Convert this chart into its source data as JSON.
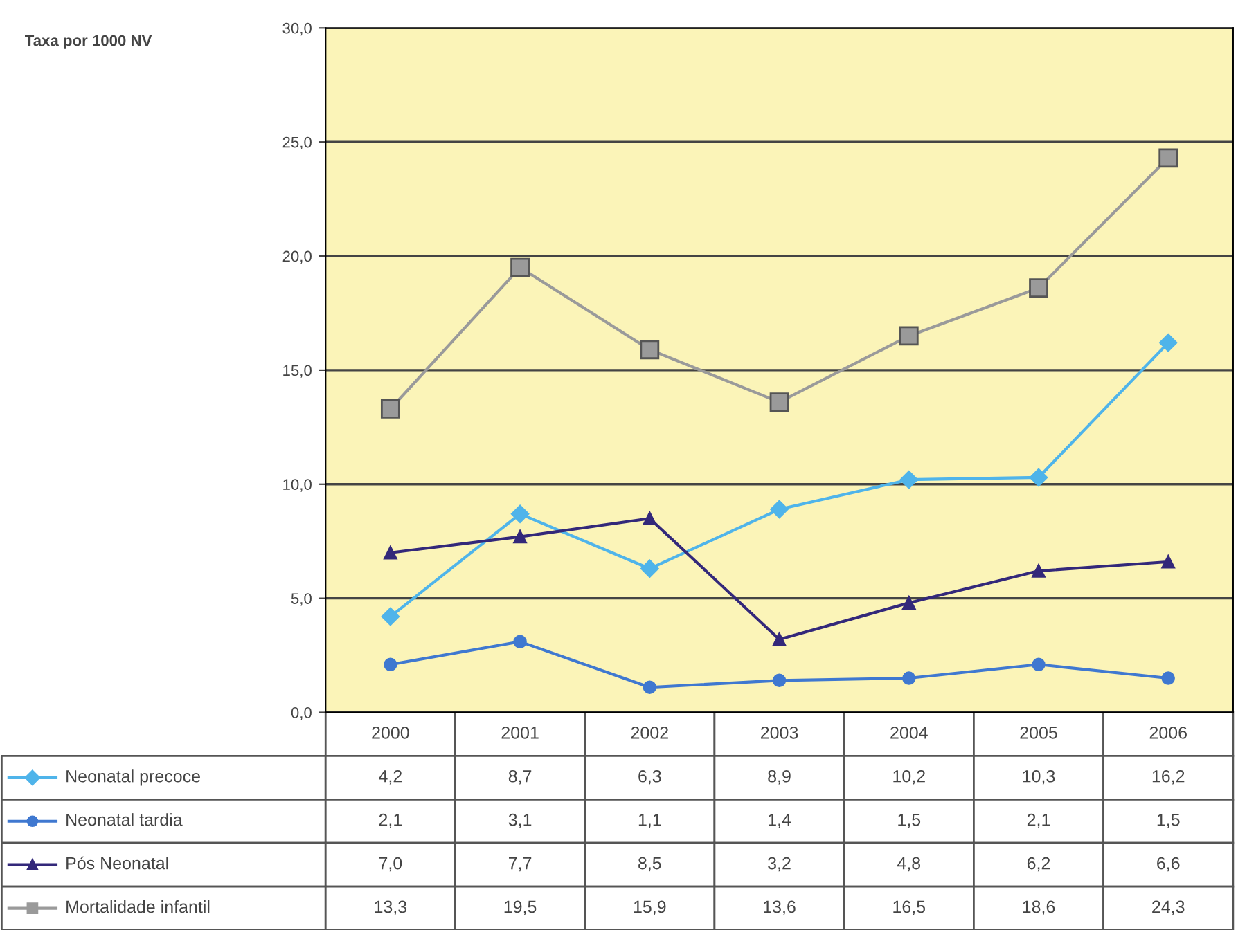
{
  "chart_data": {
    "type": "line",
    "annotations": [
      "Taxa por 1000 NV"
    ],
    "legend": "bottom left",
    "categories": [
      "2000",
      "2001",
      "2002",
      "2003",
      "2004",
      "2005",
      "2006"
    ],
    "series": [
      {
        "name": "Neonatal precoce",
        "color": "#4fb4ea",
        "marker": "diamond",
        "values": [
          4.2,
          8.7,
          6.3,
          8.9,
          10.2,
          10.3,
          16.2
        ],
        "value_labels": [
          "4,2",
          "8,7",
          "6,3",
          "8,9",
          "10,2",
          "10,3",
          "16,2"
        ]
      },
      {
        "name": "Neonatal tardia",
        "color": "#3f78d0",
        "marker": "circle",
        "values": [
          2.1,
          3.1,
          1.1,
          1.4,
          1.5,
          2.1,
          1.5
        ],
        "value_labels": [
          "2,1",
          "3,1",
          "1,1",
          "1,4",
          "1,5",
          "2,1",
          "1,5"
        ]
      },
      {
        "name": "Pós Neonatal",
        "color": "#33287a",
        "marker": "triangle",
        "values": [
          7.0,
          7.7,
          8.5,
          3.2,
          4.8,
          6.2,
          6.6
        ],
        "value_labels": [
          "7,0",
          "7,7",
          "8,5",
          "3,2",
          "4,8",
          "6,2",
          "6,6"
        ]
      },
      {
        "name": "Mortalidade infantil",
        "color": "#9a9a9a",
        "marker": "square",
        "values": [
          13.3,
          19.5,
          15.9,
          13.6,
          16.5,
          18.6,
          24.3
        ],
        "value_labels": [
          "13,3",
          "19,5",
          "15,9",
          "13,6",
          "16,5",
          "18,6",
          "24,3"
        ]
      }
    ],
    "ylim": [
      0,
      30
    ],
    "yticks": [
      {
        "value": 0,
        "label": "0,0"
      },
      {
        "value": 5,
        "label": "5,0"
      },
      {
        "value": 10,
        "label": "10,0"
      },
      {
        "value": 15,
        "label": "15,0"
      },
      {
        "value": 20,
        "label": "20,0"
      },
      {
        "value": 25,
        "label": "25,0"
      },
      {
        "value": 30,
        "label": "30,0"
      }
    ],
    "grid": "y",
    "line_style": "solid"
  }
}
